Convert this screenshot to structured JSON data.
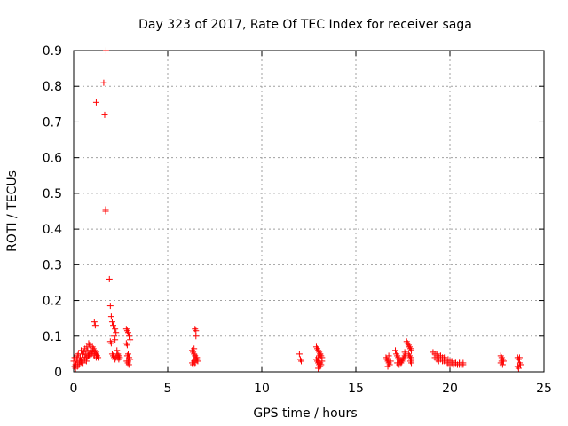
{
  "chart_data": {
    "type": "scatter",
    "title": "Day 323 of 2017, Rate Of TEC Index for receiver saga",
    "xlabel": "GPS time / hours",
    "ylabel": "ROTI / TECUs",
    "xlim": [
      0,
      25
    ],
    "ylim": [
      0,
      0.9
    ],
    "xticks": [
      "0",
      "5",
      "10",
      "15",
      "20",
      "25"
    ],
    "yticks": [
      "0",
      "0.1",
      "0.2",
      "0.3",
      "0.4",
      "0.5",
      "0.6",
      "0.7",
      "0.8",
      "0.9"
    ],
    "grid": true,
    "marker": "+",
    "color": "#ff0000",
    "series": [
      {
        "name": "ROTI",
        "x": [
          0.0,
          0.05,
          0.1,
          0.15,
          0.2,
          0.25,
          0.3,
          0.35,
          0.4,
          0.45,
          0.5,
          0.55,
          0.6,
          0.65,
          0.7,
          0.75,
          0.8,
          0.85,
          0.9,
          0.95,
          0.05,
          0.12,
          0.2,
          0.28,
          0.36,
          0.44,
          0.52,
          0.6,
          0.68,
          0.76,
          0.84,
          0.92,
          1.0,
          1.08,
          0.1,
          0.2,
          0.3,
          0.4,
          0.5,
          0.6,
          0.7,
          0.8,
          0.9,
          1.0,
          1.1,
          1.2,
          1.0,
          1.05,
          1.1,
          1.15,
          1.2,
          1.25,
          1.3,
          1.1,
          1.15,
          1.2,
          1.6,
          1.65,
          1.7,
          1.72,
          1.7,
          1.9,
          1.95,
          2.0,
          2.05,
          2.1,
          2.15,
          2.2,
          2.25,
          1.95,
          2.0,
          2.05,
          2.1,
          2.15,
          2.2,
          2.25,
          2.3,
          2.35,
          2.4,
          2.45,
          2.2,
          2.3,
          2.35,
          2.4,
          2.8,
          2.85,
          2.9,
          2.95,
          3.0,
          2.8,
          2.85,
          2.9,
          2.95,
          3.0,
          2.82,
          2.88,
          2.94,
          2.85,
          2.9,
          6.3,
          6.35,
          6.4,
          6.45,
          6.5,
          6.55,
          6.6,
          6.3,
          6.35,
          6.4,
          6.45,
          6.5,
          6.55,
          6.45,
          6.5,
          6.4,
          6.5,
          12.0,
          12.05,
          12.1,
          12.9,
          12.95,
          13.0,
          13.05,
          13.1,
          13.15,
          13.2,
          12.9,
          12.95,
          13.0,
          13.05,
          13.1,
          13.15,
          13.2,
          13.0,
          13.05,
          13.1,
          13.0,
          13.1,
          16.6,
          16.65,
          16.7,
          16.75,
          16.8,
          16.85,
          16.7,
          16.75,
          17.1,
          17.15,
          17.2,
          17.25,
          17.3,
          17.35,
          17.4,
          17.45,
          17.5,
          17.55,
          17.6,
          17.65,
          17.2,
          17.3,
          17.4,
          17.5,
          17.6,
          17.7,
          17.75,
          17.8,
          17.85,
          17.9,
          17.95,
          17.8,
          17.85,
          17.9,
          17.95,
          17.9,
          17.95,
          19.1,
          19.2,
          19.3,
          19.4,
          19.5,
          19.6,
          19.7,
          19.8,
          19.9,
          20.0,
          20.1,
          20.2,
          20.3,
          20.4,
          20.5,
          20.6,
          20.7,
          19.2,
          19.3,
          19.4,
          19.5,
          19.6,
          19.7,
          19.8,
          19.9,
          20.0,
          20.1,
          20.2,
          20.3,
          20.4,
          20.5,
          20.6,
          20.7,
          19.3,
          19.5,
          19.7,
          19.9,
          20.1,
          20.3,
          20.5,
          22.7,
          22.75,
          22.8,
          22.85,
          22.7,
          22.8,
          22.75,
          23.6,
          23.65,
          23.7,
          23.75,
          23.6,
          23.7,
          23.65
        ],
        "y": [
          0.03,
          0.04,
          0.02,
          0.035,
          0.045,
          0.05,
          0.03,
          0.04,
          0.06,
          0.05,
          0.04,
          0.055,
          0.065,
          0.05,
          0.07,
          0.06,
          0.08,
          0.075,
          0.06,
          0.05,
          0.015,
          0.02,
          0.025,
          0.02,
          0.03,
          0.025,
          0.035,
          0.04,
          0.03,
          0.045,
          0.05,
          0.055,
          0.06,
          0.05,
          0.01,
          0.015,
          0.02,
          0.03,
          0.025,
          0.035,
          0.04,
          0.045,
          0.05,
          0.055,
          0.045,
          0.04,
          0.07,
          0.065,
          0.06,
          0.055,
          0.05,
          0.045,
          0.04,
          0.14,
          0.13,
          0.755,
          0.81,
          0.72,
          0.45,
          0.9,
          0.455,
          0.26,
          0.185,
          0.155,
          0.14,
          0.13,
          0.1,
          0.12,
          0.11,
          0.085,
          0.08,
          0.05,
          0.045,
          0.04,
          0.035,
          0.04,
          0.045,
          0.04,
          0.035,
          0.04,
          0.09,
          0.06,
          0.05,
          0.045,
          0.12,
          0.115,
          0.11,
          0.1,
          0.09,
          0.08,
          0.075,
          0.05,
          0.04,
          0.035,
          0.03,
          0.025,
          0.02,
          0.045,
          0.03,
          0.06,
          0.055,
          0.05,
          0.045,
          0.04,
          0.035,
          0.03,
          0.025,
          0.02,
          0.03,
          0.025,
          0.035,
          0.04,
          0.12,
          0.115,
          0.065,
          0.1,
          0.05,
          0.035,
          0.03,
          0.07,
          0.065,
          0.06,
          0.055,
          0.05,
          0.045,
          0.04,
          0.035,
          0.03,
          0.025,
          0.02,
          0.015,
          0.02,
          0.03,
          0.04,
          0.045,
          0.05,
          0.01,
          0.025,
          0.04,
          0.035,
          0.03,
          0.025,
          0.02,
          0.03,
          0.015,
          0.045,
          0.06,
          0.05,
          0.045,
          0.04,
          0.035,
          0.03,
          0.025,
          0.03,
          0.035,
          0.04,
          0.045,
          0.05,
          0.025,
          0.02,
          0.03,
          0.035,
          0.055,
          0.085,
          0.08,
          0.075,
          0.07,
          0.065,
          0.06,
          0.05,
          0.045,
          0.04,
          0.035,
          0.03,
          0.025,
          0.055,
          0.05,
          0.045,
          0.04,
          0.035,
          0.03,
          0.03,
          0.025,
          0.025,
          0.02,
          0.025,
          0.02,
          0.025,
          0.02,
          0.025,
          0.02,
          0.025,
          0.04,
          0.035,
          0.03,
          0.045,
          0.04,
          0.035,
          0.03,
          0.025,
          0.03,
          0.025,
          0.02,
          0.025,
          0.02,
          0.025,
          0.02,
          0.02,
          0.05,
          0.045,
          0.04,
          0.035,
          0.03,
          0.025,
          0.02,
          0.045,
          0.04,
          0.035,
          0.03,
          0.025,
          0.02,
          0.03,
          0.04,
          0.035,
          0.04,
          0.02,
          0.015,
          0.025,
          0.01
        ]
      }
    ]
  }
}
